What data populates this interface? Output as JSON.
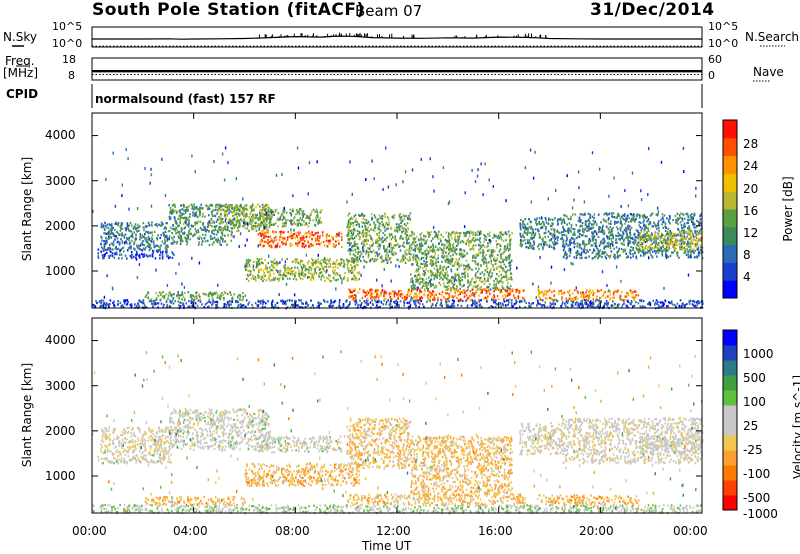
{
  "header": {
    "station": "South Pole Station (fitACF)",
    "beam": "Beam 07",
    "date": "31/Dec/2014"
  },
  "left_labels": {
    "nsky": "N.Sky",
    "freq": "Freq.",
    "freq_unit": "[MHz]",
    "cpid": "CPID"
  },
  "right_labels": {
    "nsearch": "N.Search",
    "nave": "Nave"
  },
  "cpid_value": "normalsound (fast) 157 RF",
  "chart_data": [
    {
      "type": "line",
      "name": "noise-panel",
      "left_label": "N.Sky",
      "right_label": "N.Search",
      "left_ticks": [
        "10^5",
        "10^0"
      ],
      "right_ticks": [
        "10^5",
        "10^0"
      ],
      "x_hours": [
        0,
        1,
        2,
        3,
        3.5,
        4,
        5,
        6,
        6.5,
        7,
        7.5,
        8,
        8.5,
        9,
        9.5,
        10,
        10.5,
        11,
        12,
        13,
        14,
        15,
        16,
        17,
        17.5,
        18,
        19,
        20,
        21,
        22,
        23,
        24
      ],
      "n_sky_log10": [
        0.4,
        0.4,
        0.4,
        0.5,
        0.3,
        0.4,
        0.5,
        0.6,
        0.8,
        1.0,
        1.2,
        1.4,
        1.3,
        1.2,
        1.5,
        1.6,
        1.4,
        1.0,
        0.8,
        0.7,
        0.9,
        0.8,
        1.2,
        1.1,
        0.9,
        0.6,
        0.5,
        0.4,
        0.4,
        0.4,
        0.4,
        0.4
      ],
      "n_search_log10": [
        -2.6,
        -2.6,
        -2.6,
        -2.6,
        -2.6,
        -2.6,
        -2.6,
        -2.6,
        -2.6,
        -2.6,
        -2.6,
        -2.6,
        -2.6,
        -2.6,
        -2.6,
        -2.6,
        -2.6,
        -2.6,
        -2.6,
        -2.6,
        -2.6,
        -2.6,
        -2.6,
        -2.6,
        -2.6,
        -2.6,
        -2.6,
        -2.6,
        -2.6,
        -2.6,
        -2.6,
        -2.6
      ]
    },
    {
      "type": "line",
      "name": "frequency-panel",
      "left_ticks": [
        "18",
        "8"
      ],
      "right_ticks": [
        "60",
        "0"
      ],
      "x_hours": [
        0,
        24
      ],
      "frequency_mhz": [
        12.0,
        12.0
      ],
      "nave": [
        15,
        15
      ]
    },
    {
      "type": "heatmap",
      "name": "power",
      "xlabel": "",
      "ylabel": "Slant Range [km]",
      "xlim_hours": [
        0,
        24
      ],
      "ylim_km": [
        180,
        4500
      ],
      "y_ticks": [
        "4000",
        "3000",
        "2000",
        "1000"
      ],
      "colorbar_label": "Power [dB]",
      "colorbar_ticks": [
        "28",
        "24",
        "20",
        "16",
        "12",
        "8",
        "4"
      ],
      "scale_range": [
        0,
        32
      ],
      "colors": [
        "#0000ff",
        "#1a3fd0",
        "#2a6bb8",
        "#3a8a5a",
        "#5aa040",
        "#b8b830",
        "#f0c000",
        "#ff9000",
        "#ff5000",
        "#ff1000"
      ],
      "echo_regions": [
        {
          "t0": 0.2,
          "t1": 3.2,
          "r0": 1300,
          "r1": 1500,
          "v": 6
        },
        {
          "t0": 0.3,
          "t1": 3.0,
          "r0": 1500,
          "r1": 2100,
          "v": 10
        },
        {
          "t0": 3.0,
          "t1": 5.5,
          "r0": 1600,
          "r1": 2500,
          "v": 12
        },
        {
          "t0": 5.0,
          "t1": 7.0,
          "r0": 1900,
          "r1": 2500,
          "v": 16
        },
        {
          "t0": 6.5,
          "t1": 9.8,
          "r0": 1550,
          "r1": 1900,
          "v": 26
        },
        {
          "t0": 5.5,
          "t1": 9.0,
          "r0": 2000,
          "r1": 2400,
          "v": 14
        },
        {
          "t0": 6.0,
          "t1": 10.5,
          "r0": 800,
          "r1": 1300,
          "v": 16
        },
        {
          "t0": 10.0,
          "t1": 12.5,
          "r0": 1200,
          "r1": 2300,
          "v": 14
        },
        {
          "t0": 12.5,
          "t1": 16.5,
          "r0": 600,
          "r1": 1900,
          "v": 14
        },
        {
          "t0": 16.8,
          "t1": 18.5,
          "r0": 1500,
          "r1": 2200,
          "v": 10
        },
        {
          "t0": 18.5,
          "t1": 24.0,
          "r0": 1300,
          "r1": 2300,
          "v": 10
        },
        {
          "t0": 21.5,
          "t1": 24.0,
          "r0": 1500,
          "r1": 1900,
          "v": 18
        },
        {
          "t0": 0.0,
          "t1": 24.0,
          "r0": 200,
          "r1": 380,
          "v": 6
        },
        {
          "t0": 2.0,
          "t1": 6.0,
          "r0": 380,
          "r1": 560,
          "v": 14
        },
        {
          "t0": 10.0,
          "t1": 17.0,
          "r0": 380,
          "r1": 620,
          "v": 26
        },
        {
          "t0": 17.5,
          "t1": 21.5,
          "r0": 380,
          "r1": 600,
          "v": 24
        }
      ]
    },
    {
      "type": "heatmap",
      "name": "velocity",
      "xlabel": "Time UT",
      "ylabel": "Slant Range [km]",
      "xlim_hours": [
        0,
        24
      ],
      "ylim_km": [
        180,
        4500
      ],
      "x_ticks": [
        "00:00",
        "04:00",
        "08:00",
        "12:00",
        "16:00",
        "20:00",
        "00:00"
      ],
      "y_ticks": [
        "4000",
        "3000",
        "2000",
        "1000"
      ],
      "colorbar_label": "Velocity [m s^-1]",
      "colorbar_ticks": [
        "1000",
        "500",
        "100",
        "25",
        "-25",
        "-100",
        "-500",
        "-1000"
      ],
      "scale_range": [
        -1200,
        1200
      ],
      "colors": [
        "#ff0000",
        "#ff4000",
        "#ff7a00",
        "#ffa030",
        "#f0c850",
        "#c8c8c8",
        "#c8c8c8",
        "#60c040",
        "#40a040",
        "#2a7a8a",
        "#2040c0",
        "#0000ff"
      ],
      "echo_regions": [
        {
          "t0": 0.2,
          "t1": 3.2,
          "r0": 1300,
          "r1": 1500,
          "v": 0
        },
        {
          "t0": 0.3,
          "t1": 3.0,
          "r0": 1500,
          "r1": 2100,
          "v": -150
        },
        {
          "t0": 3.0,
          "t1": 7.0,
          "r0": 1600,
          "r1": 2500,
          "v": 0
        },
        {
          "t0": 6.5,
          "t1": 9.8,
          "r0": 1550,
          "r1": 1900,
          "v": 0
        },
        {
          "t0": 6.0,
          "t1": 10.5,
          "r0": 800,
          "r1": 1300,
          "v": -400
        },
        {
          "t0": 10.0,
          "t1": 12.5,
          "r0": 1200,
          "r1": 2300,
          "v": -300
        },
        {
          "t0": 12.5,
          "t1": 16.5,
          "r0": 600,
          "r1": 1900,
          "v": -350
        },
        {
          "t0": 16.8,
          "t1": 18.5,
          "r0": 1500,
          "r1": 2200,
          "v": -100
        },
        {
          "t0": 18.5,
          "t1": 24.0,
          "r0": 1300,
          "r1": 2300,
          "v": -80
        },
        {
          "t0": 21.5,
          "t1": 24.0,
          "r0": 1500,
          "r1": 1900,
          "v": 0
        },
        {
          "t0": 0.0,
          "t1": 24.0,
          "r0": 200,
          "r1": 380,
          "v": 150
        },
        {
          "t0": 2.0,
          "t1": 6.0,
          "r0": 380,
          "r1": 560,
          "v": -400
        },
        {
          "t0": 10.0,
          "t1": 17.0,
          "r0": 380,
          "r1": 620,
          "v": -350
        },
        {
          "t0": 17.5,
          "t1": 21.5,
          "r0": 380,
          "r1": 600,
          "v": -400
        }
      ]
    }
  ]
}
